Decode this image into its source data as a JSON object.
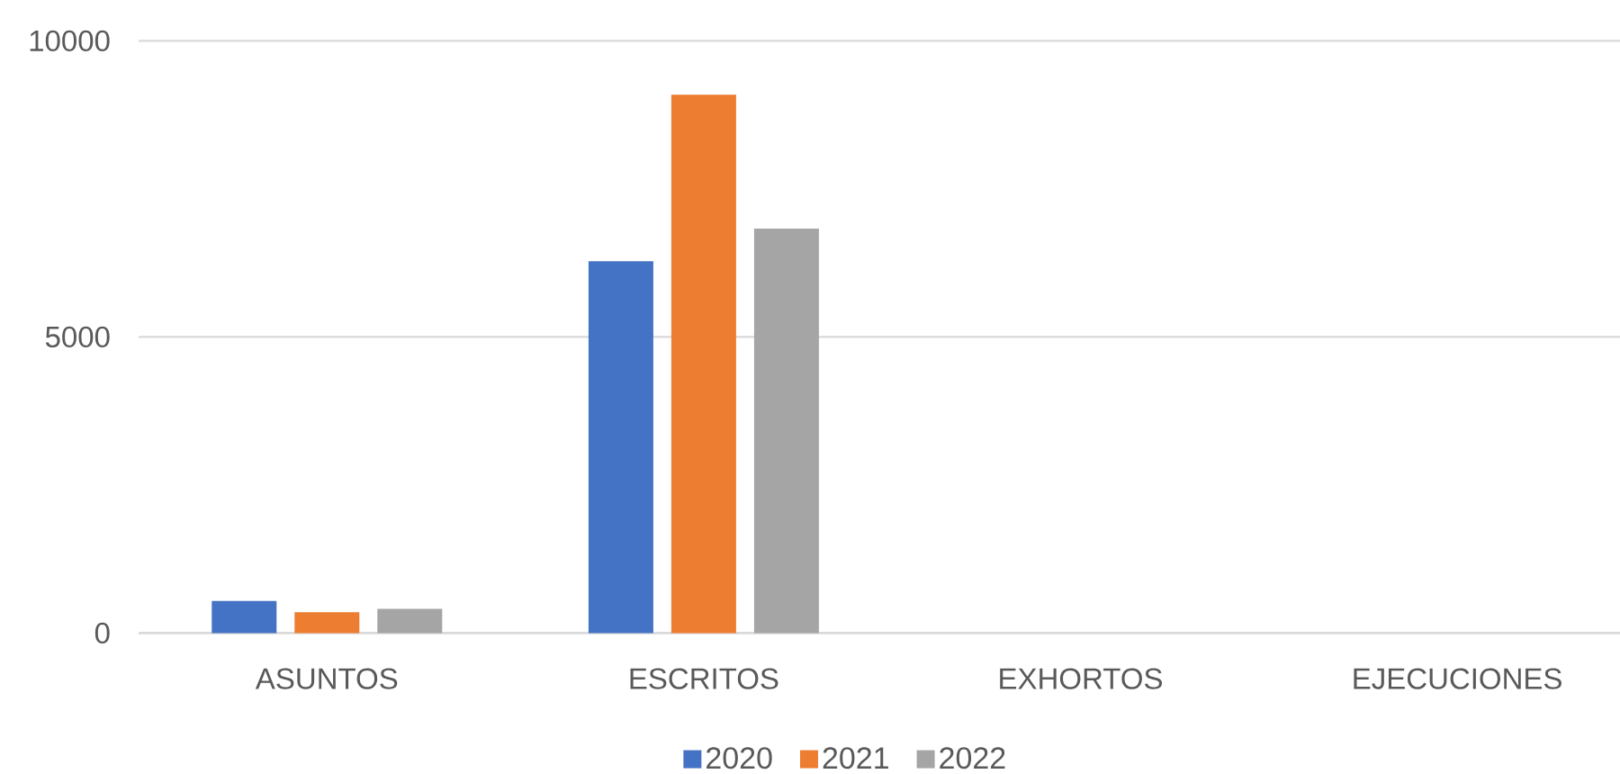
{
  "chart_data": {
    "type": "bar",
    "categories": [
      "ASUNTOS",
      "ESCRITOS",
      "EXHORTOS",
      "EJECUCIONES"
    ],
    "series": [
      {
        "name": "2020",
        "color": "#4472c4",
        "values": [
          540,
          6280,
          0,
          0
        ]
      },
      {
        "name": "2021",
        "color": "#ed7d31",
        "values": [
          350,
          9090,
          0,
          0
        ]
      },
      {
        "name": "2022",
        "color": "#a5a5a5",
        "values": [
          410,
          6830,
          0,
          0
        ]
      }
    ],
    "ylim": [
      0,
      10000
    ],
    "yticks": [
      0,
      5000,
      10000
    ],
    "grid": "y",
    "legend": "bottom"
  }
}
